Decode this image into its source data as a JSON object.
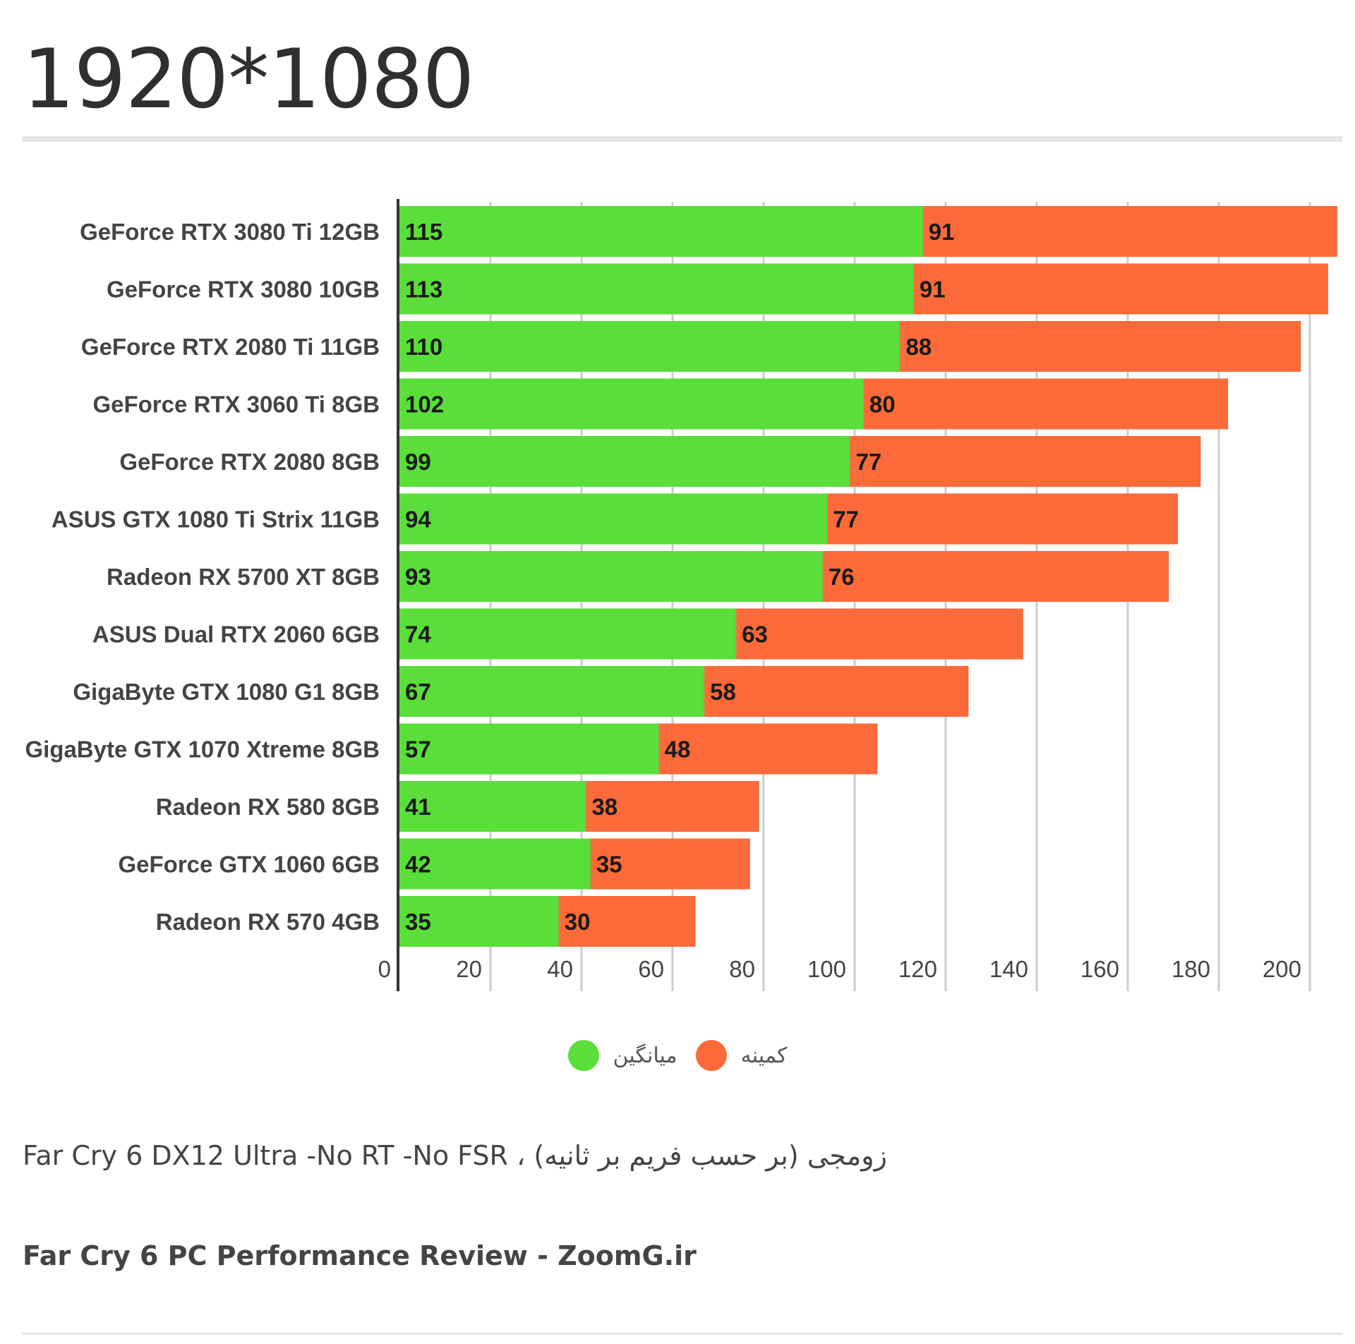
{
  "page": {
    "title": "1920*1080",
    "subtitle": "Far Cry 6 DX12 Ultra -No RT -No FSR ، زومجی (بر حسب فریم بر ثانیه)",
    "source": "Far Cry 6 PC Performance Review - ZoomG.ir"
  },
  "chart_data": {
    "type": "bar",
    "orientation": "horizontal",
    "stacked": true,
    "categories": [
      "GeForce RTX 3080 Ti 12GB",
      "GeForce RTX 3080 10GB",
      "GeForce RTX 2080 Ti 11GB",
      "GeForce RTX 3060 Ti 8GB",
      "GeForce RTX 2080 8GB",
      "ASUS GTX 1080 Ti Strix 11GB",
      "Radeon RX 5700 XT 8GB",
      "ASUS Dual RTX 2060 6GB",
      "GigaByte GTX 1080 G1 8GB",
      "GigaByte GTX 1070 Xtreme 8GB",
      "Radeon RX 580 8GB",
      "GeForce GTX 1060 6GB",
      "Radeon RX 570 4GB"
    ],
    "series": [
      {
        "name": "میانگین",
        "color": "#5ade3a",
        "values": [
          115,
          113,
          110,
          102,
          99,
          94,
          93,
          74,
          67,
          57,
          41,
          42,
          35
        ]
      },
      {
        "name": "کمینه",
        "color": "#fd6a3a",
        "values": [
          91,
          91,
          88,
          80,
          77,
          77,
          76,
          63,
          58,
          48,
          38,
          35,
          30
        ]
      }
    ],
    "xlim": [
      0,
      200
    ],
    "xticks": [
      0,
      20,
      40,
      60,
      80,
      100,
      120,
      140,
      160,
      180,
      200
    ],
    "grid": true,
    "legend_position": "bottom",
    "xlabel": "",
    "ylabel": ""
  }
}
